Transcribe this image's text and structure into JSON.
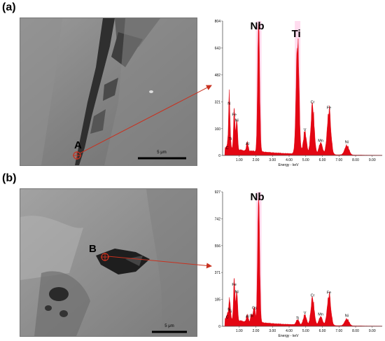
{
  "colors": {
    "peak": "#e30613",
    "highlight": "#ff9ad2",
    "axis": "#555555",
    "arrow": "#c8311f"
  },
  "panels": [
    {
      "label": "(a)",
      "spot_label": "A",
      "scale_bar": "5 μm",
      "chart_data": {
        "type": "area",
        "xlabel": "Energy - keV",
        "xlim": [
          0,
          9.6
        ],
        "ylim": [
          0,
          804
        ],
        "x_ticks": [
          "1.00",
          "2.00",
          "3.00",
          "4.00",
          "5.00",
          "6.00",
          "7.00",
          "8.00",
          "9.00"
        ],
        "y_ticks": [
          "0",
          "160",
          "321",
          "482",
          "643",
          "804"
        ],
        "peaks": [
          {
            "element": "C",
            "energy": 0.28,
            "counts": 25
          },
          {
            "element": "N",
            "energy": 0.39,
            "counts": 290
          },
          {
            "element": "Ti",
            "energy": 0.45,
            "counts": 80
          },
          {
            "element": "Fe",
            "energy": 0.7,
            "counts": 225
          },
          {
            "element": "Ni",
            "energy": 0.85,
            "counts": 190
          },
          {
            "element": "Al",
            "energy": 1.49,
            "counts": 50
          },
          {
            "element": "Nb",
            "energy": 2.17,
            "counts": 765
          },
          {
            "element": "Ti",
            "energy": 4.51,
            "counts": 675
          },
          {
            "element": "V",
            "energy": 4.95,
            "counts": 135
          },
          {
            "element": "Cr",
            "energy": 5.41,
            "counts": 300
          },
          {
            "element": "Mn",
            "energy": 5.9,
            "counts": 70
          },
          {
            "element": "Fe",
            "energy": 6.4,
            "counts": 265
          },
          {
            "element": "Ni",
            "energy": 7.47,
            "counts": 60
          }
        ],
        "annotations": [
          "Nb",
          "Ti"
        ]
      }
    },
    {
      "label": "(b)",
      "spot_label": "B",
      "scale_bar": "5 μm",
      "chart_data": {
        "type": "area",
        "xlabel": "Energy - keV",
        "xlim": [
          0,
          9.6
        ],
        "ylim": [
          0,
          927
        ],
        "x_ticks": [
          "1.00",
          "2.00",
          "3.00",
          "4.00",
          "5.00",
          "6.00",
          "7.00",
          "8.00",
          "9.00"
        ],
        "y_ticks": [
          "0",
          "185",
          "371",
          "556",
          "742",
          "927"
        ],
        "peaks": [
          {
            "element": "C",
            "energy": 0.28,
            "counts": 40
          },
          {
            "element": "N",
            "energy": 0.39,
            "counts": 95
          },
          {
            "element": "Ti",
            "energy": 0.45,
            "counts": 80
          },
          {
            "element": "Fe",
            "energy": 0.7,
            "counts": 265
          },
          {
            "element": "Ni",
            "energy": 0.85,
            "counts": 215
          },
          {
            "element": "Al",
            "energy": 1.49,
            "counts": 45
          },
          {
            "element": "Si",
            "energy": 1.74,
            "counts": 50
          },
          {
            "element": "Os",
            "energy": 1.91,
            "counts": 105
          },
          {
            "element": "Nb",
            "energy": 2.17,
            "counts": 855
          },
          {
            "element": "Ti",
            "energy": 4.51,
            "counts": 35
          },
          {
            "element": "V",
            "energy": 4.95,
            "counts": 70
          },
          {
            "element": "Cr",
            "energy": 5.41,
            "counts": 190
          },
          {
            "element": "Mn",
            "energy": 5.9,
            "counts": 60
          },
          {
            "element": "Fe",
            "energy": 6.4,
            "counts": 210
          },
          {
            "element": "Ni",
            "energy": 7.47,
            "counts": 50
          }
        ],
        "annotations": [
          "Nb"
        ]
      }
    }
  ]
}
